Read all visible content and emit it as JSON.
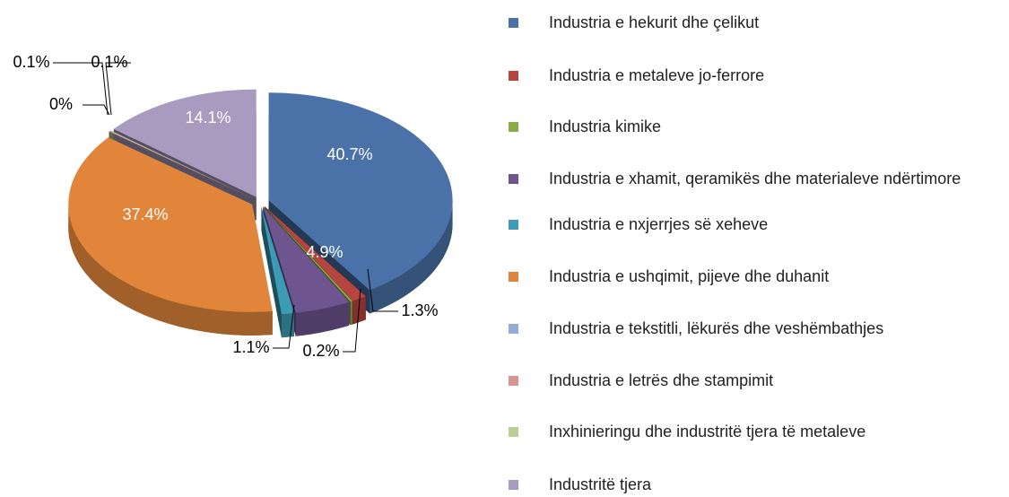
{
  "chart_data": {
    "type": "pie",
    "categories": [
      "Industria e hekurit dhe çelikut",
      "Industria e metaleve jo-ferrore",
      "Industria kimike",
      "Industria e xhamit, qeramikës dhe materialeve ndërtimore",
      "Industria e nxjerrjes së xeheve",
      "Industria e ushqimit, pijeve dhe duhanit",
      "Industria e tekstitli, lëkurës dhe veshëmbathjes",
      "Industria e letrës dhe stampimit",
      "Inxhinieringu dhe industritë tjera të metaleve",
      "Industritë tjera"
    ],
    "values": [
      40.7,
      1.3,
      0.2,
      4.9,
      1.1,
      37.4,
      0,
      0.1,
      0.1,
      14.1
    ],
    "value_labels": [
      "40.7%",
      "1.3%",
      "0.2%",
      "4.9%",
      "1.1%",
      "37.4%",
      "0%",
      "0.1%",
      "0.1%",
      "14.1%"
    ],
    "colors": [
      "#4a72a8",
      "#b84440",
      "#8aab48",
      "#6e558f",
      "#3d9cb5",
      "#e0853a",
      "#95acd6",
      "#d69592",
      "#b9cf94",
      "#a99bc0"
    ],
    "legend": "right"
  }
}
